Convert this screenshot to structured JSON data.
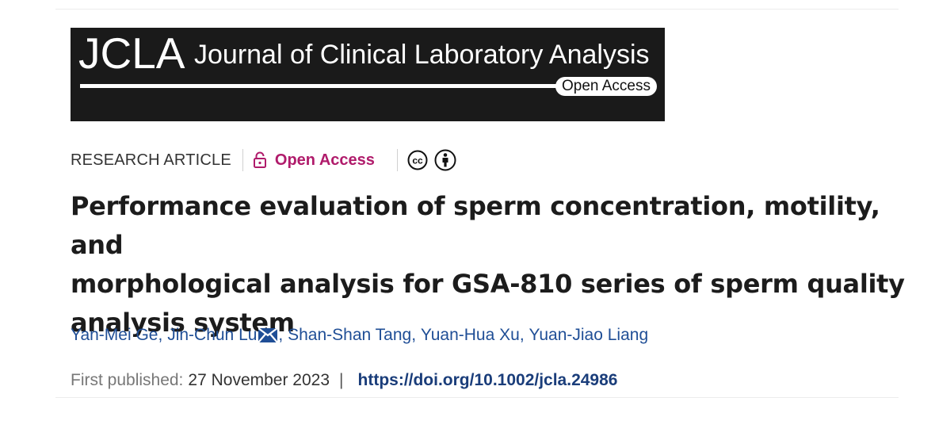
{
  "banner": {
    "acronym": "JCLA",
    "journal_name": "Journal of Clinical Laboratory Analysis",
    "open_access_badge": "Open Access"
  },
  "meta": {
    "article_type": "RESEARCH ARTICLE",
    "open_access_label": "Open Access",
    "license_icons": [
      "cc-icon",
      "by-attribution-icon"
    ]
  },
  "title": {
    "line1": "Performance evaluation of sperm concentration, motility, and",
    "line2": "morphological analysis for GSA-810 series of sperm quality",
    "line3": "analysis system"
  },
  "authors": [
    {
      "name": "Yan-Mei Ge",
      "separator": ","
    },
    {
      "name": "Jin-Chun Lu",
      "separator": ","
    },
    {
      "name": "Shan-Shan Tang",
      "separator": ","
    },
    {
      "name": "Yuan-Hua Xu",
      "separator": ","
    },
    {
      "name": "Yuan-Jiao Liang",
      "separator": ""
    }
  ],
  "publication": {
    "first_published_label": "First published:",
    "date": "27 November 2023",
    "separator": "|",
    "doi": "https://doi.org/10.1002/jcla.24986"
  },
  "colors": {
    "banner_bg": "#1a1a1a",
    "open_access_accent": "#b01b6b",
    "author_link": "#1f4e96",
    "doi_link": "#1a3d7a"
  }
}
